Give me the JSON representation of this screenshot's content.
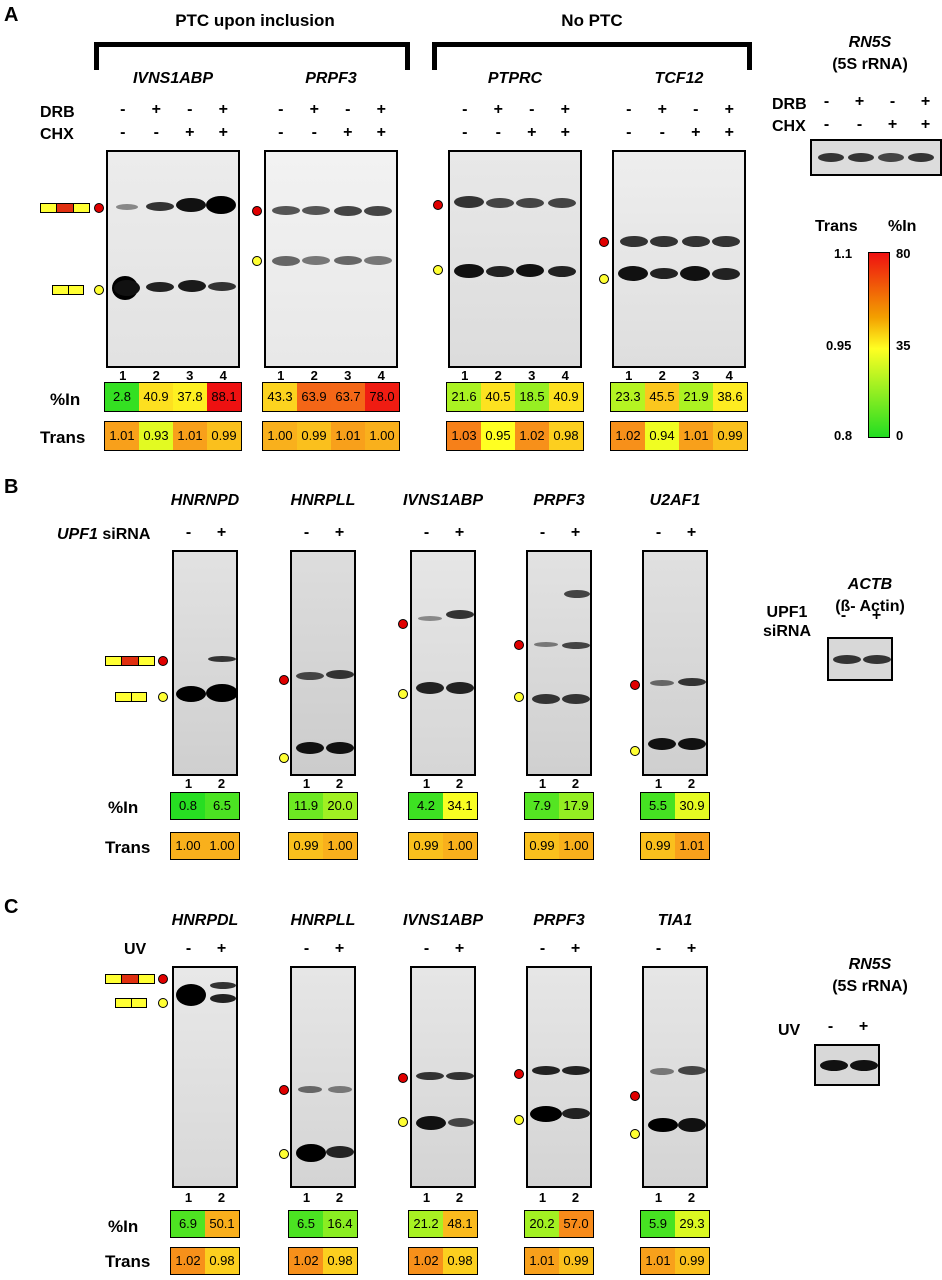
{
  "panelA": {
    "letter": "A",
    "group1": "PTC upon inclusion",
    "group2": "No PTC",
    "row_drb": "DRB",
    "row_chx": "CHX",
    "drb": [
      "-",
      "+",
      "-",
      "+"
    ],
    "chx": [
      "-",
      "-",
      "+",
      "+"
    ],
    "row_in": "%In",
    "row_trans": "Trans",
    "lanes": [
      "1",
      "2",
      "3",
      "4"
    ],
    "genes": [
      {
        "name": "IVNS1ABP",
        "in": [
          "2.8",
          "40.9",
          "37.8",
          "88.1"
        ],
        "trans": [
          "1.01",
          "0.93",
          "1.01",
          "0.99"
        ]
      },
      {
        "name": "PRPF3",
        "in": [
          "43.3",
          "63.9",
          "63.7",
          "78.0"
        ],
        "trans": [
          "1.00",
          "0.99",
          "1.01",
          "1.00"
        ]
      },
      {
        "name": "PTPRC",
        "in": [
          "21.6",
          "40.5",
          "18.5",
          "40.9"
        ],
        "trans": [
          "1.03",
          "0.95",
          "1.02",
          "0.98"
        ]
      },
      {
        "name": "TCF12",
        "in": [
          "23.3",
          "45.5",
          "21.9",
          "38.6"
        ],
        "trans": [
          "1.02",
          "0.94",
          "1.01",
          "0.99"
        ]
      }
    ],
    "control_gene": "RN5S",
    "control_sub": "(5S rRNA)",
    "legend": {
      "trans_label": "Trans",
      "in_label": "%In",
      "trans_ticks": [
        "1.1",
        "0.95",
        "0.8"
      ],
      "in_ticks": [
        "80",
        "35",
        "0"
      ]
    }
  },
  "panelB": {
    "letter": "B",
    "treat_gene": "UPF1",
    "treat_suffix": "siRNA",
    "signs": [
      "-",
      "+"
    ],
    "lanes": [
      "1",
      "2"
    ],
    "row_in": "%In",
    "row_trans": "Trans",
    "genes": [
      {
        "name": "HNRNPD",
        "in": [
          "0.8",
          "6.5"
        ],
        "trans": [
          "1.00",
          "1.00"
        ]
      },
      {
        "name": "HNRPLL",
        "in": [
          "11.9",
          "20.0"
        ],
        "trans": [
          "0.99",
          "1.00"
        ]
      },
      {
        "name": "IVNS1ABP",
        "in": [
          "4.2",
          "34.1"
        ],
        "trans": [
          "0.99",
          "1.00"
        ]
      },
      {
        "name": "PRPF3",
        "in": [
          "7.9",
          "17.9"
        ],
        "trans": [
          "0.99",
          "1.00"
        ]
      },
      {
        "name": "U2AF1",
        "in": [
          "5.5",
          "30.9"
        ],
        "trans": [
          "0.99",
          "1.01"
        ]
      }
    ],
    "control_gene": "ACTB",
    "control_sub": "(ß- Actin)",
    "control_treat1": "UPF1",
    "control_treat2": "siRNA"
  },
  "panelC": {
    "letter": "C",
    "treat": "UV",
    "signs": [
      "-",
      "+"
    ],
    "lanes": [
      "1",
      "2"
    ],
    "row_in": "%In",
    "row_trans": "Trans",
    "genes": [
      {
        "name": "HNRPDL",
        "in": [
          "6.9",
          "50.1"
        ],
        "trans": [
          "1.02",
          "0.98"
        ]
      },
      {
        "name": "HNRPLL",
        "in": [
          "6.5",
          "16.4"
        ],
        "trans": [
          "1.02",
          "0.98"
        ]
      },
      {
        "name": "IVNS1ABP",
        "in": [
          "21.2",
          "48.1"
        ],
        "trans": [
          "1.02",
          "0.98"
        ]
      },
      {
        "name": "PRPF3",
        "in": [
          "20.2",
          "57.0"
        ],
        "trans": [
          "1.01",
          "0.99"
        ]
      },
      {
        "name": "TIA1",
        "in": [
          "5.9",
          "29.3"
        ],
        "trans": [
          "1.01",
          "0.99"
        ]
      }
    ],
    "control_gene": "RN5S",
    "control_sub": "(5S rRNA)"
  },
  "colors": {
    "in_low": "#22dd22",
    "in_mid": "#ffff22",
    "in_high": "#ee1111"
  }
}
